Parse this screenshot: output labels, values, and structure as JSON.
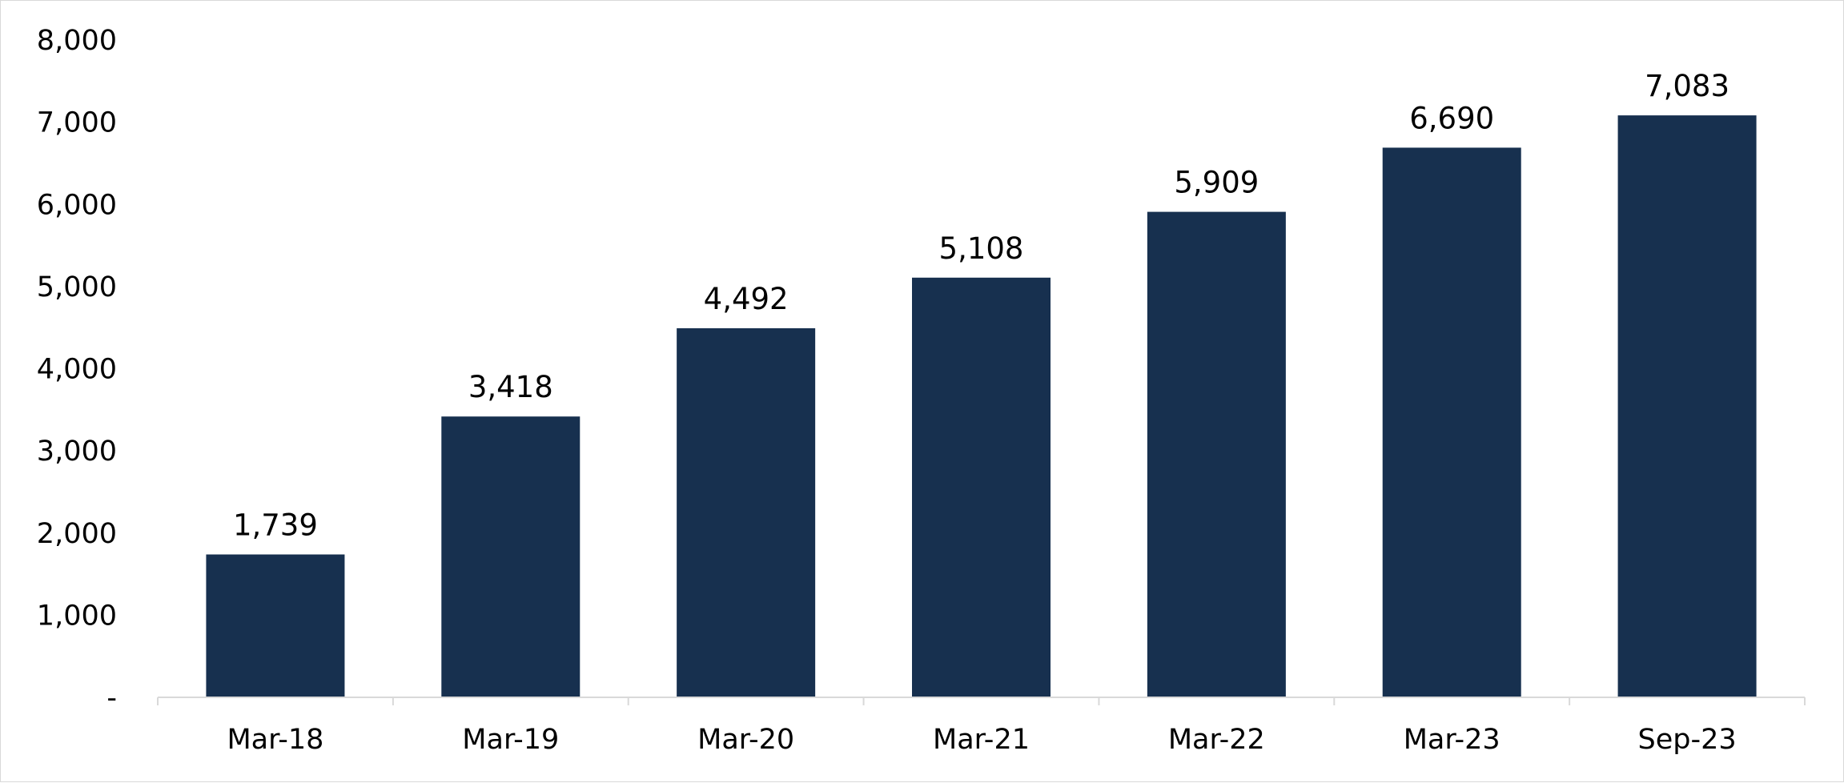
{
  "chart_data": {
    "type": "bar",
    "categories": [
      "Mar-18",
      "Mar-19",
      "Mar-20",
      "Mar-21",
      "Mar-22",
      "Mar-23",
      "Sep-23"
    ],
    "values": [
      1739,
      3418,
      4492,
      5108,
      5909,
      6690,
      7083
    ],
    "data_labels": [
      "1,739",
      "3,418",
      "4,492",
      "5,108",
      "5,909",
      "6,690",
      "7,083"
    ],
    "title": "",
    "xlabel": "",
    "ylabel": "",
    "ylim": [
      0,
      8000
    ],
    "yticks": [
      0,
      1000,
      2000,
      3000,
      4000,
      5000,
      6000,
      7000,
      8000
    ],
    "ytick_labels": [
      "-",
      "1,000",
      "2,000",
      "3,000",
      "4,000",
      "5,000",
      "6,000",
      "7,000",
      "8,000"
    ],
    "grid": false,
    "legend": "none",
    "bar_color": "#17304F",
    "axis_color": "#d9d9d9"
  }
}
